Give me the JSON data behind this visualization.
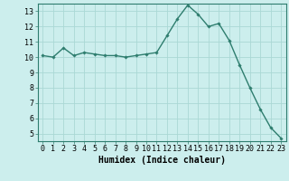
{
  "x": [
    0,
    1,
    2,
    3,
    4,
    5,
    6,
    7,
    8,
    9,
    10,
    11,
    12,
    13,
    14,
    15,
    16,
    17,
    18,
    19,
    20,
    21,
    22,
    23
  ],
  "y": [
    10.1,
    10.0,
    10.6,
    10.1,
    10.3,
    10.2,
    10.1,
    10.1,
    10.0,
    10.1,
    10.2,
    10.3,
    11.4,
    12.5,
    13.4,
    12.8,
    12.0,
    12.2,
    11.1,
    9.5,
    8.0,
    6.6,
    5.4,
    4.7
  ],
  "line_color": "#2e7d6e",
  "marker": "D",
  "marker_size": 1.8,
  "line_width": 1.0,
  "xlabel": "Humidex (Indice chaleur)",
  "xlabel_fontsize": 7,
  "xlim": [
    -0.5,
    23.5
  ],
  "ylim": [
    4.5,
    13.5
  ],
  "yticks": [
    5,
    6,
    7,
    8,
    9,
    10,
    11,
    12,
    13
  ],
  "xticks": [
    0,
    1,
    2,
    3,
    4,
    5,
    6,
    7,
    8,
    9,
    10,
    11,
    12,
    13,
    14,
    15,
    16,
    17,
    18,
    19,
    20,
    21,
    22,
    23
  ],
  "bg_color": "#cceeed",
  "grid_color": "#aad8d5",
  "tick_fontsize": 6,
  "axis_color": "#2e7d6e"
}
